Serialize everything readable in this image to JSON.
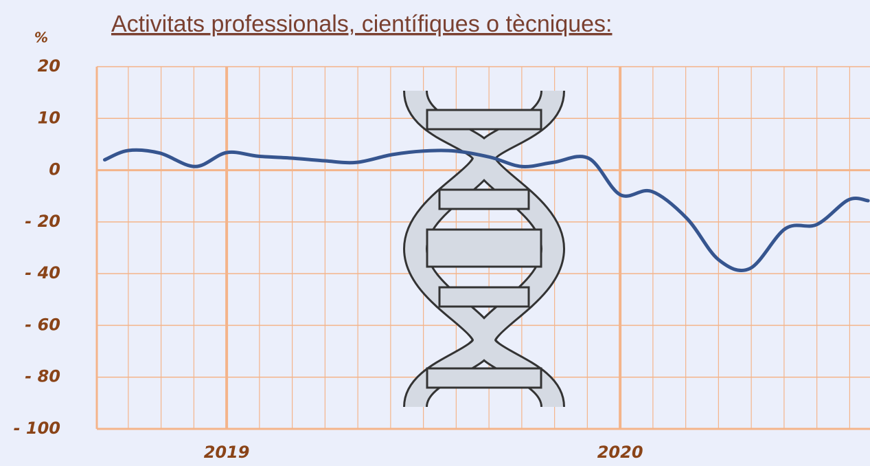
{
  "chart_data": {
    "type": "line",
    "title": "Activitats professionals, científiques o tècniques:",
    "y_label": "%",
    "x": [
      2018.69,
      2018.75,
      2018.83,
      2018.92,
      2019,
      2019.08,
      2019.17,
      2019.25,
      2019.33,
      2019.42,
      2019.5,
      2019.58,
      2019.67,
      2019.75,
      2019.83,
      2019.92,
      2020,
      2020.08,
      2020.17,
      2020.25,
      2020.33,
      2020.42,
      2020.5,
      2020.58,
      2020.63
    ],
    "series": [
      {
        "color": "#36558f",
        "values": [
          2,
          3.8,
          3.3,
          0.7,
          3.4,
          2.7,
          2.3,
          1.8,
          1.5,
          3,
          3.7,
          3.7,
          2.5,
          0.7,
          1.5,
          2.3,
          -9.5,
          -8.2,
          -18.7,
          -34.6,
          -38,
          -22.6,
          -21,
          -11.5,
          -11.8
        ]
      }
    ],
    "xlim": [
      2018.67,
      2020.635
    ],
    "xticks": [
      2019,
      2020
    ],
    "ylim": [
      -100,
      20
    ],
    "yticks": [
      20,
      10,
      0,
      {
        "value": -20,
        "label": "- 20"
      },
      {
        "value": -40,
        "label": "- 40"
      },
      {
        "value": -60,
        "label": "- 60"
      },
      {
        "value": -80,
        "label": "- 80"
      },
      {
        "value": -100,
        "label": "- 100"
      }
    ],
    "grid": true
  }
}
